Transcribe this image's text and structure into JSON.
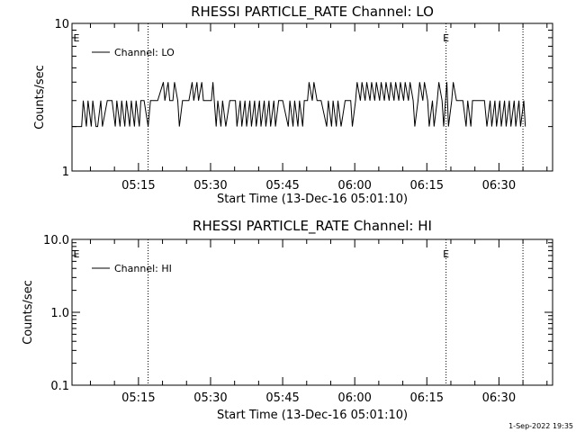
{
  "footer_timestamp": "1-Sep-2022 19:35",
  "chart_data": [
    {
      "type": "line",
      "title": "RHESSI PARTICLE_RATE Channel: LO",
      "xlabel": "Start Time (13-Dec-16 05:01:10)",
      "ylabel": "Counts/sec",
      "yscale": "log",
      "ylim": [
        1,
        10
      ],
      "yticks": [
        1,
        10
      ],
      "ytick_labels": [
        "1",
        "10"
      ],
      "xlim": [
        "05:01:10",
        "06:41:10"
      ],
      "xticks": [
        "05:15",
        "05:30",
        "05:45",
        "06:00",
        "06:15",
        "06:30"
      ],
      "legend": "Channel: LO",
      "legend_position": "top-left",
      "vlines": [
        "05:17",
        "06:19",
        "06:35"
      ],
      "markers": [
        {
          "text": "E",
          "x": "05:01"
        },
        {
          "text": "E",
          "x": "06:19"
        }
      ],
      "series": [
        {
          "name": "Channel: LO",
          "x": [
            "05:01:10",
            "05:03:10",
            "05:03:30",
            "05:04:10",
            "05:04:30",
            "05:05:10",
            "05:05:30",
            "05:06:10",
            "05:06:30",
            "05:07:10",
            "05:07:30",
            "05:08:30",
            "05:09:30",
            "05:10:10",
            "05:10:30",
            "05:11:10",
            "05:11:30",
            "05:12:10",
            "05:12:30",
            "05:13:10",
            "05:13:30",
            "05:14:10",
            "05:14:30",
            "05:15:10",
            "05:15:30",
            "05:16:10",
            "05:17:00",
            "05:17:30",
            "05:18:00",
            "05:19:00",
            "05:20:10",
            "05:20:30",
            "05:21:10",
            "05:21:30",
            "05:22:10",
            "05:22:30",
            "05:23:10",
            "05:23:30",
            "05:24:10",
            "05:25:30",
            "05:26:10",
            "05:26:30",
            "05:27:10",
            "05:27:30",
            "05:28:10",
            "05:28:30",
            "05:30:10",
            "05:30:30",
            "05:31:10",
            "05:31:30",
            "05:32:10",
            "05:32:30",
            "05:33:10",
            "05:34:00",
            "05:35:10",
            "05:35:30",
            "05:36:10",
            "05:36:30",
            "05:37:10",
            "05:37:30",
            "05:38:10",
            "05:38:30",
            "05:39:10",
            "05:39:30",
            "05:40:10",
            "05:40:30",
            "05:41:10",
            "05:41:30",
            "05:42:10",
            "05:42:30",
            "05:43:10",
            "05:43:30",
            "05:44:10",
            "05:45:00",
            "05:46:10",
            "05:46:30",
            "05:47:10",
            "05:47:30",
            "05:48:10",
            "05:48:30",
            "05:49:10",
            "05:49:30",
            "05:50:10",
            "05:50:30",
            "05:51:10",
            "05:51:30",
            "05:52:10",
            "05:53:00",
            "05:54:10",
            "05:54:30",
            "05:55:10",
            "05:55:30",
            "05:56:10",
            "05:56:30",
            "05:57:10",
            "05:58:00",
            "05:59:10",
            "05:59:30",
            "06:00:10",
            "06:00:30",
            "06:01:10",
            "06:01:30",
            "06:02:10",
            "06:02:30",
            "06:03:10",
            "06:03:30",
            "06:04:10",
            "06:04:30",
            "06:05:10",
            "06:05:30",
            "06:06:10",
            "06:06:30",
            "06:07:10",
            "06:07:30",
            "06:08:10",
            "06:08:30",
            "06:09:10",
            "06:09:30",
            "06:10:10",
            "06:10:30",
            "06:11:10",
            "06:11:30",
            "06:12:10",
            "06:12:30",
            "06:13:10",
            "06:13:30",
            "06:14:10",
            "06:14:30",
            "06:15:10",
            "06:15:30",
            "06:16:10",
            "06:16:30",
            "06:17:10",
            "06:17:30",
            "06:18:10",
            "06:18:30",
            "06:19:10",
            "06:19:30",
            "06:20:10",
            "06:20:30",
            "06:21:10",
            "06:22:30",
            "06:23:10",
            "06:23:30",
            "06:24:10",
            "06:24:30",
            "06:25:10",
            "06:27:00",
            "06:27:30",
            "06:28:10",
            "06:28:30",
            "06:29:10",
            "06:29:30",
            "06:30:10",
            "06:30:30",
            "06:31:10",
            "06:31:30",
            "06:32:10",
            "06:32:30",
            "06:33:10",
            "06:33:30",
            "06:34:10",
            "06:34:30",
            "06:35:10",
            "06:35:30"
          ],
          "values": [
            2,
            2,
            3,
            2,
            3,
            2,
            3,
            2,
            2,
            3,
            2,
            3,
            3,
            2,
            3,
            2,
            3,
            2,
            3,
            2,
            3,
            2,
            3,
            2,
            3,
            3,
            2,
            3,
            3,
            3,
            4,
            3,
            4,
            3,
            3,
            4,
            3,
            2,
            3,
            3,
            4,
            3,
            4,
            3,
            4,
            3,
            3,
            4,
            2,
            3,
            2,
            3,
            2,
            3,
            3,
            2,
            3,
            2,
            3,
            2,
            3,
            2,
            3,
            2,
            3,
            2,
            3,
            2,
            3,
            2,
            3,
            2,
            3,
            3,
            2,
            3,
            2,
            3,
            2,
            3,
            2,
            3,
            3,
            4,
            3,
            4,
            3,
            3,
            2,
            3,
            2,
            3,
            2,
            3,
            2,
            3,
            3,
            2,
            3,
            4,
            3,
            4,
            3,
            4,
            3,
            4,
            3,
            4,
            3,
            4,
            3,
            4,
            3,
            4,
            3,
            4,
            3,
            4,
            3,
            4,
            3,
            4,
            3,
            2,
            3,
            4,
            3,
            4,
            3,
            2,
            3,
            2,
            3,
            4,
            3,
            2,
            4,
            2,
            3,
            4,
            3,
            3,
            2,
            3,
            2,
            3,
            3,
            3,
            2,
            3,
            2,
            3,
            2,
            3,
            2,
            3,
            2,
            3,
            2,
            3,
            2,
            3,
            2,
            3,
            2
          ]
        }
      ]
    },
    {
      "type": "line",
      "title": "RHESSI PARTICLE_RATE Channel: HI",
      "xlabel": "Start Time (13-Dec-16 05:01:10)",
      "ylabel": "Counts/sec",
      "yscale": "log",
      "ylim": [
        0.1,
        10
      ],
      "yticks": [
        0.1,
        1,
        10
      ],
      "ytick_labels": [
        "0.1",
        "1.0",
        "10.0"
      ],
      "xlim": [
        "05:01:10",
        "06:41:10"
      ],
      "xticks": [
        "05:15",
        "05:30",
        "05:45",
        "06:00",
        "06:15",
        "06:30"
      ],
      "legend": "Channel: HI",
      "legend_position": "top-left",
      "vlines": [
        "05:17",
        "06:19",
        "06:35"
      ],
      "markers": [
        {
          "text": "E",
          "x": "05:01"
        },
        {
          "text": "E",
          "x": "06:19"
        }
      ],
      "series": [
        {
          "name": "Channel: HI",
          "x": [],
          "values": []
        }
      ]
    }
  ]
}
